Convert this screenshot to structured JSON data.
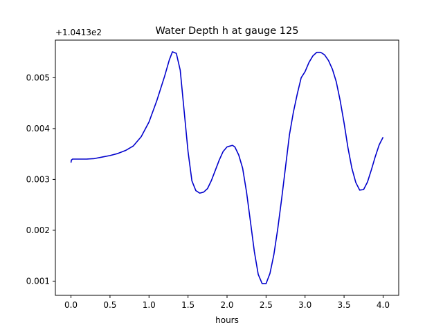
{
  "chart_data": {
    "type": "line",
    "title": "Water Depth h at gauge 125",
    "xlabel": "hours",
    "ylabel": "",
    "y_offset_label": "+1.0413e2",
    "xlim": [
      -0.2,
      4.2
    ],
    "ylim": [
      0.00072,
      0.00574
    ],
    "xticks": [
      0.0,
      0.5,
      1.0,
      1.5,
      2.0,
      2.5,
      3.0,
      3.5,
      4.0
    ],
    "xtick_labels": [
      "0.0",
      "0.5",
      "1.0",
      "1.5",
      "2.0",
      "2.5",
      "3.0",
      "3.5",
      "4.0"
    ],
    "yticks": [
      0.001,
      0.002,
      0.003,
      0.004,
      0.005
    ],
    "ytick_labels": [
      "0.001",
      "0.002",
      "0.003",
      "0.004",
      "0.005"
    ],
    "grid": false,
    "series": [
      {
        "color": "#0000cc",
        "x": [
          0.0,
          0.005,
          0.02,
          0.1,
          0.2,
          0.3,
          0.4,
          0.5,
          0.6,
          0.7,
          0.8,
          0.9,
          1.0,
          1.1,
          1.2,
          1.26,
          1.3,
          1.35,
          1.4,
          1.45,
          1.5,
          1.55,
          1.6,
          1.65,
          1.7,
          1.75,
          1.8,
          1.85,
          1.9,
          1.95,
          2.0,
          2.07,
          2.1,
          2.15,
          2.2,
          2.25,
          2.3,
          2.35,
          2.4,
          2.45,
          2.5,
          2.55,
          2.6,
          2.65,
          2.7,
          2.75,
          2.8,
          2.85,
          2.9,
          2.95,
          3.0,
          3.05,
          3.1,
          3.15,
          3.2,
          3.25,
          3.3,
          3.35,
          3.4,
          3.45,
          3.5,
          3.55,
          3.6,
          3.65,
          3.7,
          3.75,
          3.8,
          3.85,
          3.9,
          3.95,
          4.0
        ],
        "values": [
          0.00333,
          0.00338,
          0.0034,
          0.0034,
          0.0034,
          0.00341,
          0.00344,
          0.00347,
          0.00351,
          0.00357,
          0.00366,
          0.00384,
          0.00413,
          0.00455,
          0.00503,
          0.00535,
          0.00551,
          0.00548,
          0.00515,
          0.00435,
          0.00355,
          0.00297,
          0.00278,
          0.00273,
          0.00275,
          0.00282,
          0.00298,
          0.00318,
          0.00338,
          0.00355,
          0.00364,
          0.00367,
          0.00364,
          0.00348,
          0.00322,
          0.00275,
          0.00217,
          0.00158,
          0.00113,
          0.00095,
          0.00095,
          0.00115,
          0.00152,
          0.00203,
          0.00262,
          0.00325,
          0.00388,
          0.00432,
          0.00468,
          0.005,
          0.00512,
          0.0053,
          0.00543,
          0.0055,
          0.0055,
          0.00545,
          0.00534,
          0.00517,
          0.00492,
          0.00455,
          0.00411,
          0.00362,
          0.00322,
          0.00294,
          0.00279,
          0.0028,
          0.00295,
          0.00319,
          0.00345,
          0.00368,
          0.00383
        ]
      }
    ]
  }
}
